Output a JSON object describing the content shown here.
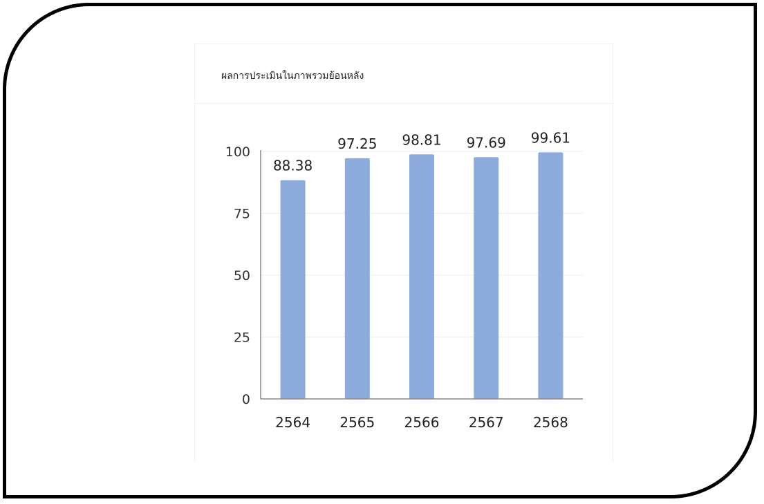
{
  "card": {
    "title": "ผลการประเมินในภาพรวมย้อนหลัง"
  },
  "colors": {
    "bar": "#8eabdd",
    "gridline": "#ececec",
    "axis": "#888888",
    "frame_border": "#000000"
  },
  "chart_data": {
    "type": "bar",
    "title": "",
    "xlabel": "",
    "ylabel": "",
    "categories": [
      "2564",
      "2565",
      "2566",
      "2567",
      "2568"
    ],
    "values": [
      88.38,
      97.25,
      98.81,
      97.69,
      99.61
    ],
    "data_labels": [
      "88.38",
      "97.25",
      "98.81",
      "97.69",
      "99.61"
    ],
    "ylim": [
      0,
      100
    ],
    "yticks": [
      0,
      25,
      50,
      75,
      100
    ],
    "grid": true,
    "legend": "none"
  }
}
